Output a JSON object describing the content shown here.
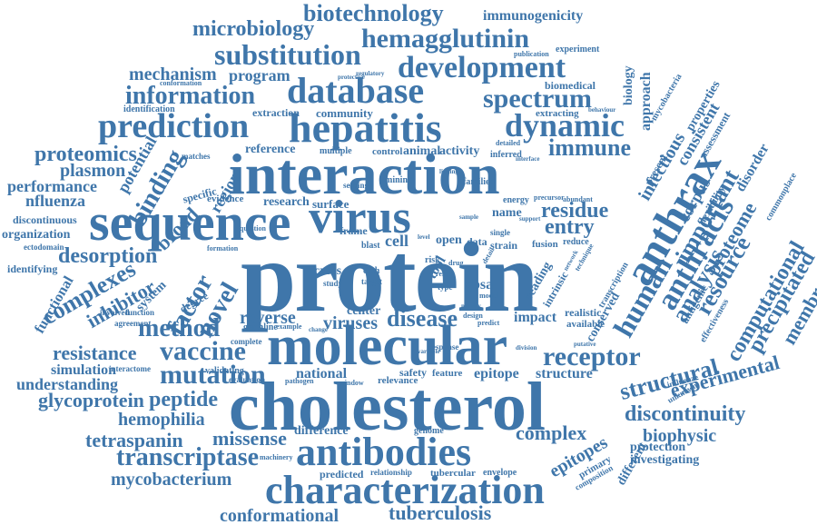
{
  "color": "#3f76aa",
  "words": {
    "protein": "protein",
    "interaction": "interaction",
    "cholesterol": "cholesterol",
    "molecular": "molecular",
    "sequence": "sequence",
    "virus": "virus",
    "characterization": "characterization",
    "antibodies": "antibodies",
    "database": "database",
    "hepatitis": "hepatitis",
    "development": "development",
    "prediction": "prediction",
    "dynamic": "dynamic",
    "anthrax": "anthrax",
    "anthracis": "anthracis",
    "human": "human",
    "substitution": "substitution",
    "hemagglutinin": "hemagglutinin",
    "biotechnology": "biotechnology",
    "microbiology": "microbiology",
    "immunogenicity": "immunogenicity",
    "information": "information",
    "spectrum": "spectrum",
    "mechanism": "mechanism",
    "program": "program",
    "conformation": "conformation",
    "proteomics": "proteomics",
    "plasmon": "plasmon",
    "performance": "performance",
    "nfluenza": "nfluenza",
    "binding": "binding",
    "potential": "potential",
    "broad": "broad",
    "region": "region",
    "desorption": "desorption",
    "complexes": "complexes",
    "inhibitor": "inhibitor",
    "factor": "factor",
    "novel": "novel",
    "method": "method",
    "vaccine": "vaccine",
    "resistance": "resistance",
    "mutation": "mutation",
    "simulation": "simulation",
    "understanding": "understanding",
    "glycoprotein": "glycoprotein",
    "peptide": "peptide",
    "hemophilia": "hemophilia",
    "tetraspanin": "tetraspanin",
    "missense": "missense",
    "transcriptase": "transcriptase",
    "mycobacterium": "mycobacterium",
    "conformational": "conformational",
    "tuberculosis": "tuberculosis",
    "disease": "disease",
    "receptor": "receptor",
    "structural": "structural",
    "experimental": "experimental",
    "discontinuity": "discontinuity",
    "biophysic": "biophysic",
    "protection": "protection",
    "investigating": "investigating",
    "complex": "complex",
    "epitopes": "epitopes",
    "epitope": "epitope",
    "structure": "structure",
    "residue": "residue",
    "entry": "entry",
    "immune": "immune",
    "important": "important",
    "analysis": "analysis",
    "resource": "resource",
    "computational": "computational",
    "precipitated": "precipitated",
    "membrane": "membrane",
    "proteome": "proteome",
    "infectious": "infectious",
    "approach": "approach",
    "biology": "biology",
    "experiment": "experiment",
    "publication": "publication",
    "biomedical": "biomedical",
    "community": "community",
    "extraction": "extraction",
    "identification": "identification",
    "extracting": "extracting",
    "reference": "reference",
    "multiple": "multiple",
    "control": "control",
    "animal": "animal",
    "activity": "activity",
    "detailed": "detailed",
    "inferred": "inferred",
    "mining": "mining",
    "sensing": "sensing",
    "families": "families",
    "evidence": "evidence",
    "research": "research",
    "surface": "surface",
    "name": "name",
    "energy": "energy",
    "precursor": "precursor",
    "abundant": "abundant",
    "organization": "organization",
    "discontinuous": "discontinuous",
    "identifying": "identifying",
    "functional": "functional",
    "system": "system",
    "involved": "involved",
    "function": "function",
    "degree": "degree",
    "agreement": "agreement",
    "reverse": "reverse",
    "viruses": "viruses",
    "germline": "germline",
    "center": "center",
    "cross": "cross",
    "cell": "cell",
    "blast": "blast",
    "open": "open",
    "data": "data",
    "strain": "strain",
    "fusion": "fusion",
    "reduce": "reduce",
    "risk": "risk",
    "gbsa": "gbsa",
    "impact": "impact",
    "realistic": "realistic",
    "available": "available",
    "national": "national",
    "safety": "safety",
    "feature": "feature",
    "relevance": "relevance",
    "difference": "difference",
    "genome": "genome",
    "predicted": "predicted",
    "relationship": "relationship",
    "tubercular": "tubercular",
    "envelope": "envelope",
    "interactome": "interactome",
    "validating": "validating",
    "evaluation": "evaluation",
    "pathogen": "pathogen",
    "window": "window",
    "complete": "complete",
    "machinery": "machinery",
    "conserved": "conserved",
    "tool": "tool",
    "frame": "frame",
    "study": "study",
    "formation": "formation",
    "matches": "matches",
    "specific": "specific",
    "mycobacteria": "mycobacteria",
    "consistent": "consistent",
    "properties": "properties",
    "assessment": "assessment",
    "disorder": "disorder",
    "commonplace": "commonplace",
    "corpus": "corpus",
    "flexibility": "flexibility",
    "antigenic": "antigenic",
    "effectiveness": "effectiveness",
    "influenze": "influenze",
    "unknown": "unknown",
    "different": "different",
    "primary": "primary",
    "composition": "composition",
    "reading": "reading",
    "intrinsic": "intrinsic",
    "transcription": "transcription",
    "technique": "technique",
    "single": "single",
    "support": "support",
    "result": "result",
    "type": "type",
    "response": "response",
    "target": "target",
    "cath": "cath",
    "model": "model",
    "drug": "drug",
    "detail": "detail",
    "question": "question",
    "protective": "protective",
    "regulatory": "regulatory",
    "behaviour": "behaviour",
    "present": "present",
    "interface": "interface",
    "linking": "linking",
    "network": "network",
    "sample": "sample",
    "variable": "variable",
    "putative": "putative",
    "division": "division",
    "example": "example",
    "change": "change",
    "level": "level",
    "design": "design",
    "predict": "predict",
    "novelty": "novelty",
    "ectodomain": "ectodomain"
  }
}
